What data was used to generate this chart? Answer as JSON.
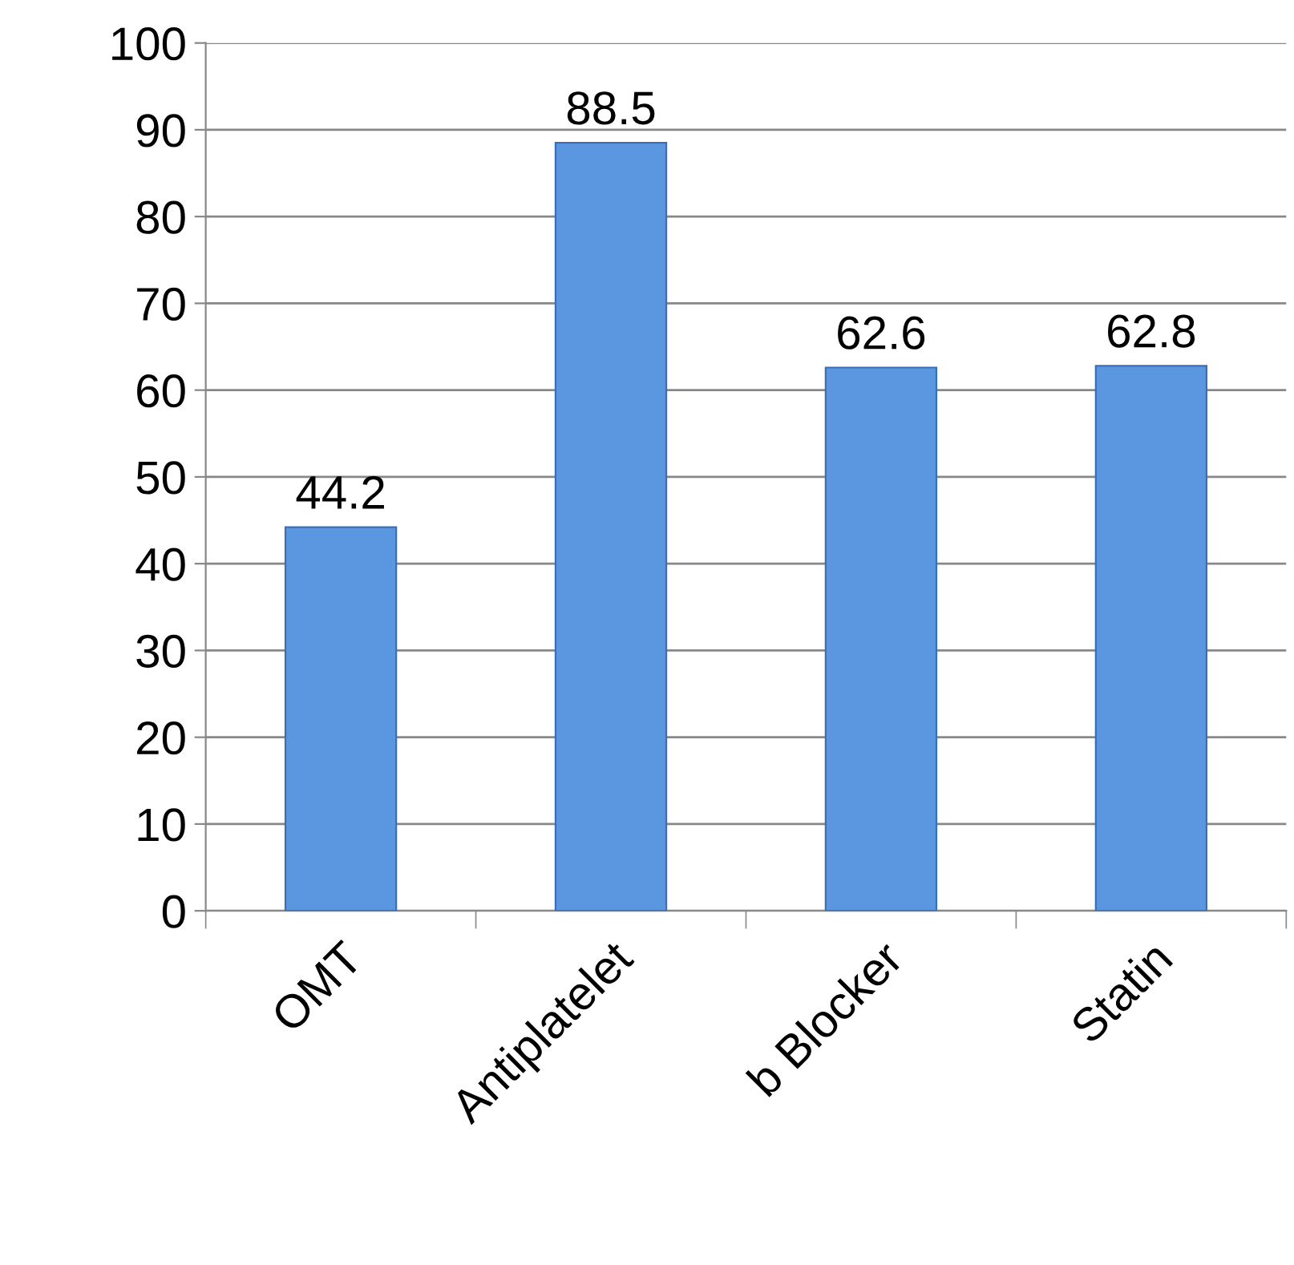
{
  "chart_data": {
    "type": "bar",
    "categories": [
      "OMT",
      "Antiplatelet",
      "b Blocker",
      "Statin"
    ],
    "values": [
      44.2,
      88.5,
      62.6,
      62.8
    ],
    "color": "#5b97e0",
    "ylim": [
      0,
      100
    ],
    "yticks": [
      0,
      10,
      20,
      30,
      40,
      50,
      60,
      70,
      80,
      90,
      100
    ],
    "grid": "y",
    "data_labels": true,
    "legend": false
  }
}
